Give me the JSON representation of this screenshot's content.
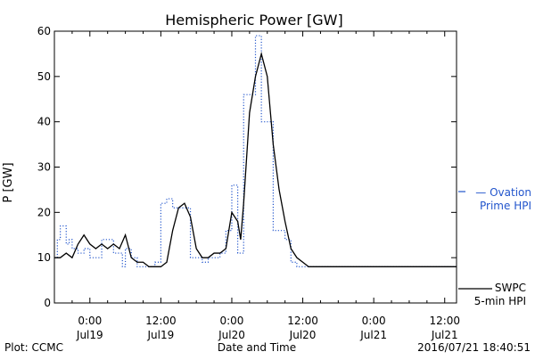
{
  "chart_data": {
    "type": "line",
    "title": "Hemispheric Power [GW]",
    "ylabel": "P [GW]",
    "xlabel": "Date and Time",
    "ylim": [
      0,
      60
    ],
    "yticks": [
      0,
      10,
      20,
      30,
      40,
      50,
      60
    ],
    "xlim": [
      -6,
      62
    ],
    "x_unit": "hours since Jul19 00:00 UTC",
    "xticks": [
      {
        "x": 0,
        "time": "0:00",
        "date": "Jul19"
      },
      {
        "x": 12,
        "time": "12:00",
        "date": "Jul19"
      },
      {
        "x": 24,
        "time": "0:00",
        "date": "Jul20"
      },
      {
        "x": 36,
        "time": "12:00",
        "date": "Jul20"
      },
      {
        "x": 48,
        "time": "0:00",
        "date": "Jul21"
      },
      {
        "x": 60,
        "time": "12:00",
        "date": "Jul21"
      }
    ],
    "grid": false,
    "legend_placement": "right, outside plot",
    "series": [
      {
        "name": "Ovation Prime HPI",
        "legend_lines": [
          "— Ovation",
          "Prime HPI"
        ],
        "color": "#2255cc",
        "style": "dotted-step",
        "x": [
          -6,
          -5.5,
          -5,
          -4,
          -3.5,
          -3,
          -2,
          -1,
          0,
          1,
          2,
          3,
          4,
          5,
          5.5,
          6,
          7,
          8,
          9,
          10,
          11,
          12,
          13,
          14,
          15,
          16,
          17,
          18,
          19,
          20,
          21,
          22,
          23,
          24,
          25,
          26,
          27,
          28,
          29,
          30,
          31,
          32,
          33,
          34,
          35,
          36,
          37,
          38,
          39,
          40,
          41,
          62
        ],
        "y": [
          10,
          14,
          17,
          13,
          14,
          12,
          11,
          12,
          10,
          10,
          14,
          14,
          11,
          11,
          8,
          12,
          10,
          8,
          8,
          8,
          9,
          22,
          23,
          21,
          21,
          21,
          10,
          10,
          9,
          10,
          10,
          11,
          16,
          26,
          11,
          46,
          46,
          59,
          40,
          40,
          16,
          16,
          14,
          9,
          8,
          8,
          8,
          8,
          8,
          8,
          8,
          8
        ]
      },
      {
        "name": "SWPC 5-min HPI",
        "legend_lines": [
          "SWPC",
          "5-min HPI"
        ],
        "color": "#000000",
        "style": "solid",
        "x": [
          -6,
          -5,
          -4,
          -3,
          -2,
          -1,
          0,
          1,
          2,
          3,
          4,
          5,
          6,
          7,
          8,
          9,
          10,
          11,
          12,
          13,
          14,
          15,
          16,
          17,
          18,
          19,
          20,
          21,
          22,
          23,
          24,
          25,
          25.5,
          26,
          27,
          28,
          29,
          30,
          31,
          32,
          33,
          34,
          35,
          36,
          37,
          38,
          39,
          40,
          62
        ],
        "y": [
          10,
          10,
          11,
          10,
          13,
          15,
          13,
          12,
          13,
          12,
          13,
          12,
          15,
          10,
          9,
          9,
          8,
          8,
          8,
          9,
          16,
          21,
          22,
          19,
          12,
          10,
          10,
          11,
          11,
          12,
          20,
          18,
          14,
          22,
          42,
          50,
          55,
          50,
          35,
          25,
          18,
          12,
          10,
          9,
          8,
          8,
          8,
          8,
          8
        ]
      }
    ]
  },
  "footer": {
    "left": "Plot: CCMC",
    "center": "Date and Time",
    "right": "2016/07/21 18:40:51"
  }
}
